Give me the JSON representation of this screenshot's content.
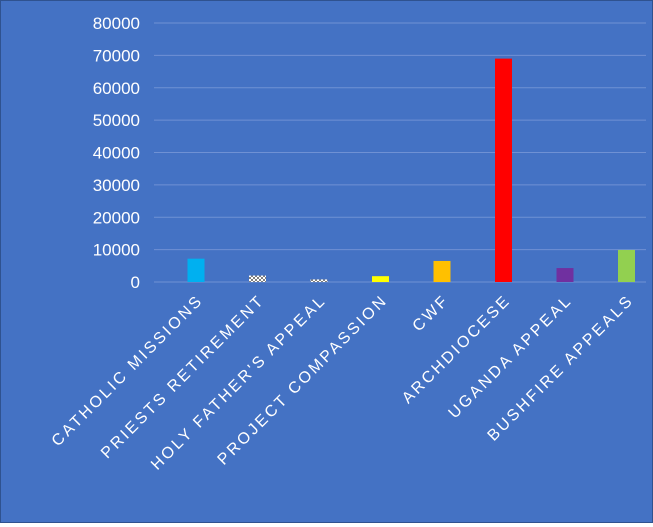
{
  "chart_data": {
    "type": "bar",
    "title": "",
    "xlabel": "",
    "ylabel": "",
    "ylim": [
      0,
      80000
    ],
    "yticks": [
      0,
      10000,
      20000,
      30000,
      40000,
      50000,
      60000,
      70000,
      80000
    ],
    "ytick_labels": [
      "0",
      "10000",
      "20000",
      "30000",
      "40000",
      "50000",
      "60000",
      "70000",
      "80000"
    ],
    "grid": true,
    "legend": "none",
    "background_color": "#4472c4",
    "gridline_color": "#6f91d4",
    "categories": [
      "CATHOLIC MISSIONS",
      "PRIESTS RETIREMENT",
      "HOLY FATHER'S APPEAL",
      "PROJECT COMPASSION",
      "CWF",
      "ARCHDIOCESE",
      "UGANDA APPEAL",
      "BUSHFIRE APPEALS"
    ],
    "values": [
      7200,
      2000,
      800,
      1800,
      6500,
      69000,
      4300,
      9900
    ],
    "bar_colors": [
      "#00b0f0",
      "#d9d9d9",
      "#d9d9d9",
      "#ffff00",
      "#ffc000",
      "#ff0000",
      "#7030a0",
      "#92d050"
    ],
    "bar_patterns": [
      "solid",
      "checker",
      "checker",
      "solid",
      "solid",
      "solid",
      "solid",
      "solid"
    ]
  }
}
